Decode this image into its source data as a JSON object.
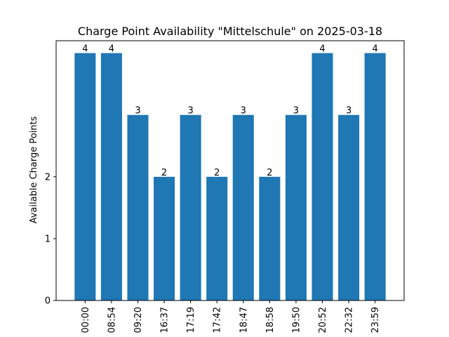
{
  "chart_data": {
    "type": "bar",
    "title": "Charge Point Availability \"Mittelschule\" on 2025-03-18",
    "xlabel": "",
    "ylabel": "Available Charge Points",
    "categories": [
      "00:00",
      "08:54",
      "09:20",
      "16:37",
      "17:19",
      "17:42",
      "18:47",
      "18:58",
      "19:50",
      "20:52",
      "22:32",
      "23:59"
    ],
    "values": [
      4,
      4,
      3,
      2,
      3,
      2,
      3,
      2,
      3,
      4,
      3,
      4
    ],
    "yticks": [
      0,
      1,
      2
    ],
    "ylim": [
      0,
      4.2
    ],
    "bar_color": "#1f77b4",
    "grid": false,
    "legend": false
  }
}
